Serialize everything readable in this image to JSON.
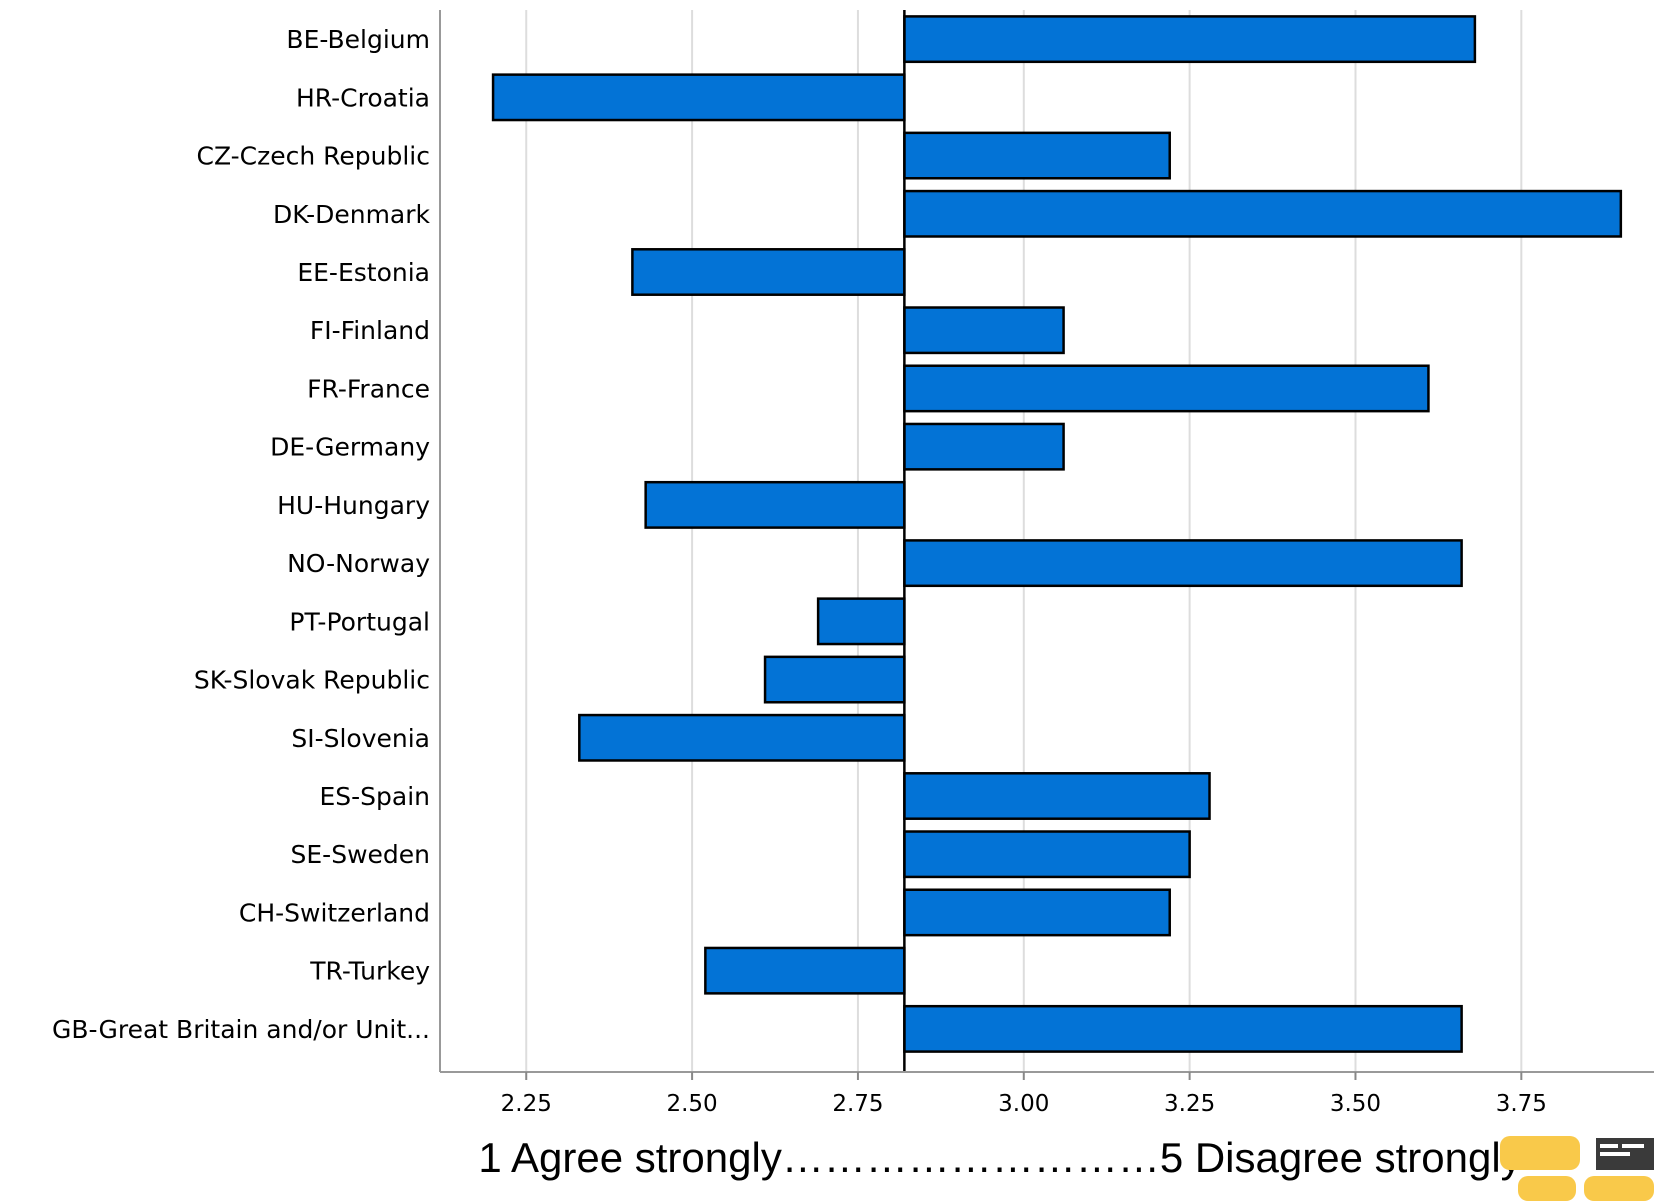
{
  "chart_data": {
    "type": "bar",
    "orientation": "horizontal",
    "categories": [
      "BE-Belgium",
      "HR-Croatia",
      "CZ-Czech Republic",
      "DK-Denmark",
      "EE-Estonia",
      "FI-Finland",
      "FR-France",
      "DE-Germany",
      "HU-Hungary",
      "NO-Norway",
      "PT-Portugal",
      "SK-Slovak Republic",
      "SI-Slovenia",
      "ES-Spain",
      "SE-Sweden",
      "CH-Switzerland",
      "TR-Turkey",
      "GB-Great Britain and/or Unit..."
    ],
    "values": [
      3.68,
      2.2,
      3.22,
      3.9,
      2.41,
      3.06,
      3.61,
      3.06,
      2.43,
      3.66,
      2.69,
      2.61,
      2.33,
      3.28,
      3.25,
      3.22,
      2.52,
      3.66
    ],
    "baseline": 2.82,
    "xlim": [
      2.12,
      3.95
    ],
    "xticks": [
      "2.25",
      "2.50",
      "2.75",
      "3.00",
      "3.25",
      "3.50",
      "3.75"
    ],
    "xlabel": "1 Agree strongly………………………5 Disagree strongly",
    "grid": "vertical",
    "bar_color": "#0373d6"
  }
}
